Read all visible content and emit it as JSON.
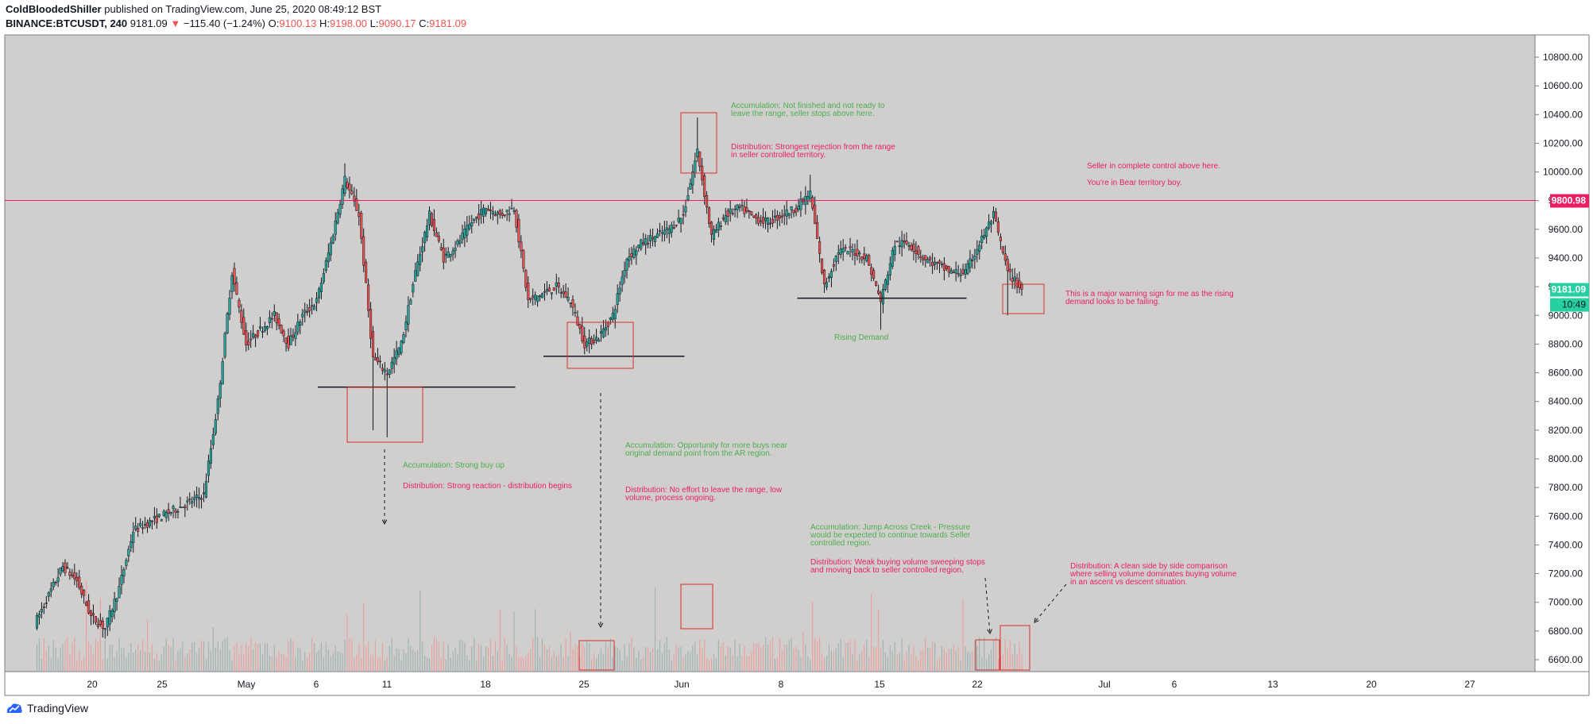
{
  "header": {
    "author": "ColdBloodedShiller",
    "published": "published on TradingView.com, June 25, 2020 08:49:12 BST",
    "symbol": "BINANCE:BTCUSDT, 240",
    "last": "9181.09",
    "arrow": "▼",
    "change": "−115.40 (−1.24%)",
    "o_label": "O:",
    "o": "9100.13",
    "h_label": "H:",
    "h": "9198.00",
    "l_label": "L:",
    "l": "9090.17",
    "c_label": "C:",
    "c": "9181.09"
  },
  "footer": {
    "brand": "TradingView",
    "icon": "tradingview-logo-icon"
  },
  "colors": {
    "bg": "#d0cfce",
    "up": "#26a69a",
    "down": "#ef5350",
    "candle_outline": "#131722",
    "pink": "#e91e63",
    "green": "#4caf50",
    "box": "#d32f2f",
    "price_tag": "#26d0a0"
  },
  "chart_data": {
    "type": "candlestick",
    "symbol": "BINANCE:BTCUSDT",
    "interval": "240",
    "ylim": [
      6500,
      10900
    ],
    "y_ticks": [
      "10800.00",
      "10600.00",
      "10400.00",
      "10200.00",
      "10000.00",
      "9800.00",
      "9600.00",
      "9400.00",
      "9200.00",
      "9000.00",
      "8800.00",
      "8600.00",
      "8400.00",
      "8200.00",
      "8000.00",
      "7800.00",
      "7600.00",
      "7400.00",
      "7200.00",
      "7000.00",
      "6800.00",
      "6600.00"
    ],
    "x_ticks": [
      "20",
      "25",
      "May",
      "6",
      "11",
      "18",
      "25",
      "Jun",
      "8",
      "15",
      "22",
      "Jul",
      "6",
      "13",
      "20",
      "27"
    ],
    "price_path": [
      {
        "date": "2020-04-16",
        "price": 6850
      },
      {
        "date": "2020-04-17",
        "price": 7050
      },
      {
        "date": "2020-04-18",
        "price": 7250
      },
      {
        "date": "2020-04-19",
        "price": 7150
      },
      {
        "date": "2020-04-20",
        "price": 6900
      },
      {
        "date": "2020-04-21",
        "price": 6820
      },
      {
        "date": "2020-04-22",
        "price": 7100
      },
      {
        "date": "2020-04-23",
        "price": 7500
      },
      {
        "date": "2020-04-24",
        "price": 7550
      },
      {
        "date": "2020-04-25",
        "price": 7600
      },
      {
        "date": "2020-04-26",
        "price": 7650
      },
      {
        "date": "2020-04-27",
        "price": 7700
      },
      {
        "date": "2020-04-28",
        "price": 7750
      },
      {
        "date": "2020-04-29",
        "price": 8400
      },
      {
        "date": "2020-04-30",
        "price": 9300
      },
      {
        "date": "2020-05-01",
        "price": 8800
      },
      {
        "date": "2020-05-02",
        "price": 8900
      },
      {
        "date": "2020-05-03",
        "price": 9000
      },
      {
        "date": "2020-05-04",
        "price": 8800
      },
      {
        "date": "2020-05-05",
        "price": 9000
      },
      {
        "date": "2020-05-06",
        "price": 9100
      },
      {
        "date": "2020-05-07",
        "price": 9500
      },
      {
        "date": "2020-05-08",
        "price": 9950
      },
      {
        "date": "2020-05-09",
        "price": 9700
      },
      {
        "date": "2020-05-10",
        "price": 8700
      },
      {
        "date": "2020-05-11",
        "price": 8600
      },
      {
        "date": "2020-05-12",
        "price": 8800
      },
      {
        "date": "2020-05-13",
        "price": 9300
      },
      {
        "date": "2020-05-14",
        "price": 9700
      },
      {
        "date": "2020-05-15",
        "price": 9400
      },
      {
        "date": "2020-05-16",
        "price": 9500
      },
      {
        "date": "2020-05-17",
        "price": 9650
      },
      {
        "date": "2020-05-18",
        "price": 9750
      },
      {
        "date": "2020-05-19",
        "price": 9700
      },
      {
        "date": "2020-05-20",
        "price": 9750
      },
      {
        "date": "2020-05-21",
        "price": 9100
      },
      {
        "date": "2020-05-22",
        "price": 9150
      },
      {
        "date": "2020-05-23",
        "price": 9200
      },
      {
        "date": "2020-05-24",
        "price": 9100
      },
      {
        "date": "2020-05-25",
        "price": 8800
      },
      {
        "date": "2020-05-26",
        "price": 8850
      },
      {
        "date": "2020-05-27",
        "price": 9000
      },
      {
        "date": "2020-05-28",
        "price": 9400
      },
      {
        "date": "2020-05-29",
        "price": 9500
      },
      {
        "date": "2020-05-30",
        "price": 9550
      },
      {
        "date": "2020-05-31",
        "price": 9600
      },
      {
        "date": "2020-06-01",
        "price": 9700
      },
      {
        "date": "2020-06-02",
        "price": 10150
      },
      {
        "date": "2020-06-03",
        "price": 9550
      },
      {
        "date": "2020-06-04",
        "price": 9700
      },
      {
        "date": "2020-06-05",
        "price": 9750
      },
      {
        "date": "2020-06-06",
        "price": 9680
      },
      {
        "date": "2020-06-07",
        "price": 9650
      },
      {
        "date": "2020-06-08",
        "price": 9700
      },
      {
        "date": "2020-06-09",
        "price": 9750
      },
      {
        "date": "2020-06-10",
        "price": 9850
      },
      {
        "date": "2020-06-11",
        "price": 9200
      },
      {
        "date": "2020-06-12",
        "price": 9450
      },
      {
        "date": "2020-06-13",
        "price": 9450
      },
      {
        "date": "2020-06-14",
        "price": 9400
      },
      {
        "date": "2020-06-15",
        "price": 9100
      },
      {
        "date": "2020-06-16",
        "price": 9500
      },
      {
        "date": "2020-06-17",
        "price": 9500
      },
      {
        "date": "2020-06-18",
        "price": 9400
      },
      {
        "date": "2020-06-19",
        "price": 9350
      },
      {
        "date": "2020-06-20",
        "price": 9300
      },
      {
        "date": "2020-06-21",
        "price": 9300
      },
      {
        "date": "2020-06-22",
        "price": 9500
      },
      {
        "date": "2020-06-23",
        "price": 9700
      },
      {
        "date": "2020-06-24",
        "price": 9300
      },
      {
        "date": "2020-06-25",
        "price": 9181
      }
    ],
    "volume": {
      "description": "volume histogram along the bottom of the pane, bars colored by candle direction"
    },
    "horizontal_lines": [
      {
        "price": 9800.98,
        "color": "#e91e63",
        "label": "9800.98"
      },
      {
        "from": "2020-05-06",
        "to": "2020-05-20",
        "price": 8500,
        "color": "#131722"
      },
      {
        "from": "2020-05-22",
        "to": "2020-06-01",
        "price": 8715,
        "color": "#131722"
      },
      {
        "from": "2020-06-09",
        "to": "2020-06-21",
        "price": 9120,
        "color": "#131722"
      }
    ],
    "last_price_label": "9181.09",
    "countdown_label": "10:49",
    "annotations": [
      {
        "text": "Accumulation: Not finished and not ready to\nleave the range, seller stops above here.",
        "color": "green"
      },
      {
        "text": "Distribution: Strongest rejection from the range\nin seller controlled territory.",
        "color": "pink"
      },
      {
        "text": "Seller in complete control above here.",
        "color": "pink"
      },
      {
        "text": "You're in Bear territory boy.",
        "color": "pink"
      },
      {
        "text": "This is a major warning sign for me as the rising\ndemand looks to be failing.",
        "color": "pink"
      },
      {
        "text": "Rising Demand",
        "color": "green"
      },
      {
        "text": "Accumulation: Strong buy up",
        "color": "green"
      },
      {
        "text": "Distribution: Strong reaction - distribution begins",
        "color": "pink"
      },
      {
        "text": "Accumulation: Opportunity for more buys near\noriginal demand point from the AR region.",
        "color": "green"
      },
      {
        "text": "Distribution: No effort to leave the range, low\nvolume, process ongoing.",
        "color": "pink"
      },
      {
        "text": "Accumulation: Jump Across Creek - Pressure\nwould be expected to continue towards Seller\ncontrolled region.",
        "color": "green"
      },
      {
        "text": "Distribution: Weak buying volume sweeping stops\nand moving back to seller controlled region.",
        "color": "pink"
      },
      {
        "text": "Distribution: A clean side by side comparison\nwhere selling volume dominates buying volume\nin an ascent vs descent situation.",
        "color": "pink"
      }
    ]
  }
}
